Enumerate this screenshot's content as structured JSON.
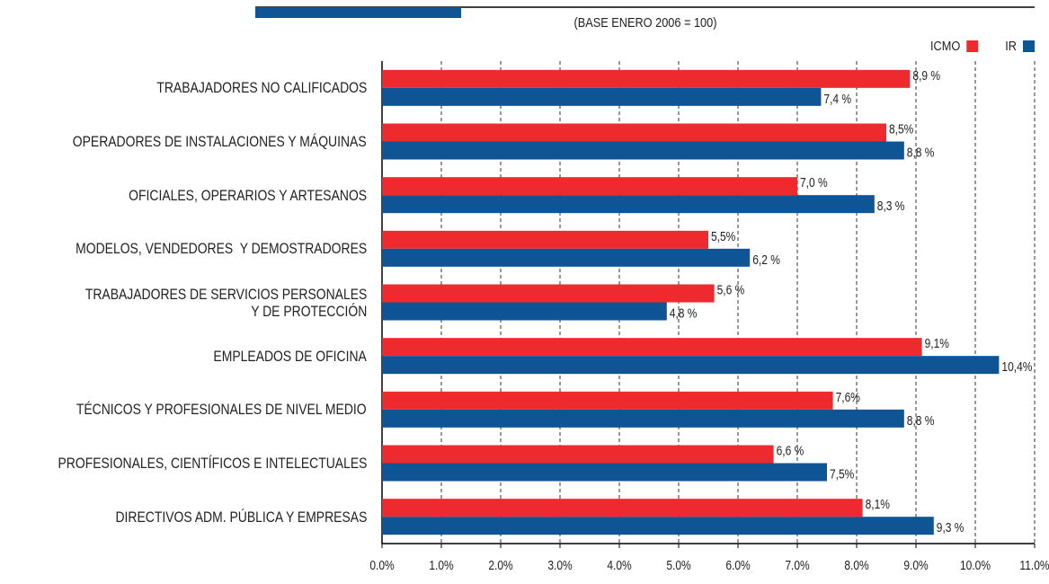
{
  "chart_data": {
    "type": "hbar",
    "subtitle": "(BASE ENERO 2006 = 100)",
    "categories": [
      "TRABAJADORES NO CALIFICADOS",
      "OPERADORES DE INSTALACIONES Y MÁQUINAS",
      "OFICIALES, OPERARIOS Y ARTESANOS",
      "MODELOS, VENDEDORES  Y DEMOSTRADORES",
      "TRABAJADORES DE SERVICIOS PERSONALES\nY DE PROTECCIÓN",
      "EMPLEADOS DE OFICINA",
      "TÉCNICOS Y PROFESIONALES DE NIVEL MEDIO",
      "PROFESIONALES, CIENTÍFICOS E INTELECTUALES",
      "DIRECTIVOS ADM. PÚBLICA Y EMPRESAS"
    ],
    "series": [
      {
        "name": "ICMO",
        "color": "#ee2a2e",
        "values": [
          8.9,
          8.5,
          7.0,
          5.5,
          5.6,
          9.1,
          7.6,
          6.6,
          8.1
        ],
        "value_labels": [
          "8,9 %",
          "8,5%",
          "7,0 %",
          "5,5%",
          "5,6 %",
          "9,1%",
          "7,6%",
          "6,6 %",
          "8,1%"
        ]
      },
      {
        "name": "IR",
        "color": "#0f5596",
        "values": [
          7.4,
          8.8,
          8.3,
          6.2,
          4.8,
          10.4,
          8.8,
          7.5,
          9.3
        ],
        "value_labels": [
          "7,4 %",
          "8,8 %",
          "8,3 %",
          "6,2 %",
          "4,8 %",
          "10,4%",
          "8,8 %",
          "7,5%",
          "9,3 %"
        ]
      }
    ],
    "xlim": [
      0,
      11
    ],
    "xticks": [
      {
        "value": 0,
        "label": "0.0%"
      },
      {
        "value": 1,
        "label": "1.0%"
      },
      {
        "value": 2,
        "label": "2.0%"
      },
      {
        "value": 3,
        "label": "3.0%"
      },
      {
        "value": 4,
        "label": "4.0%"
      },
      {
        "value": 5,
        "label": "5.0%"
      },
      {
        "value": 6,
        "label": "6.0%"
      },
      {
        "value": 7,
        "label": "7.0%"
      },
      {
        "value": 8,
        "label": "8.0%"
      },
      {
        "value": 9,
        "label": "9.0%"
      },
      {
        "value": 10,
        "label": "10.0%"
      },
      {
        "value": 11,
        "label": "11.0%"
      }
    ],
    "grid": true,
    "legend": "top-right"
  }
}
